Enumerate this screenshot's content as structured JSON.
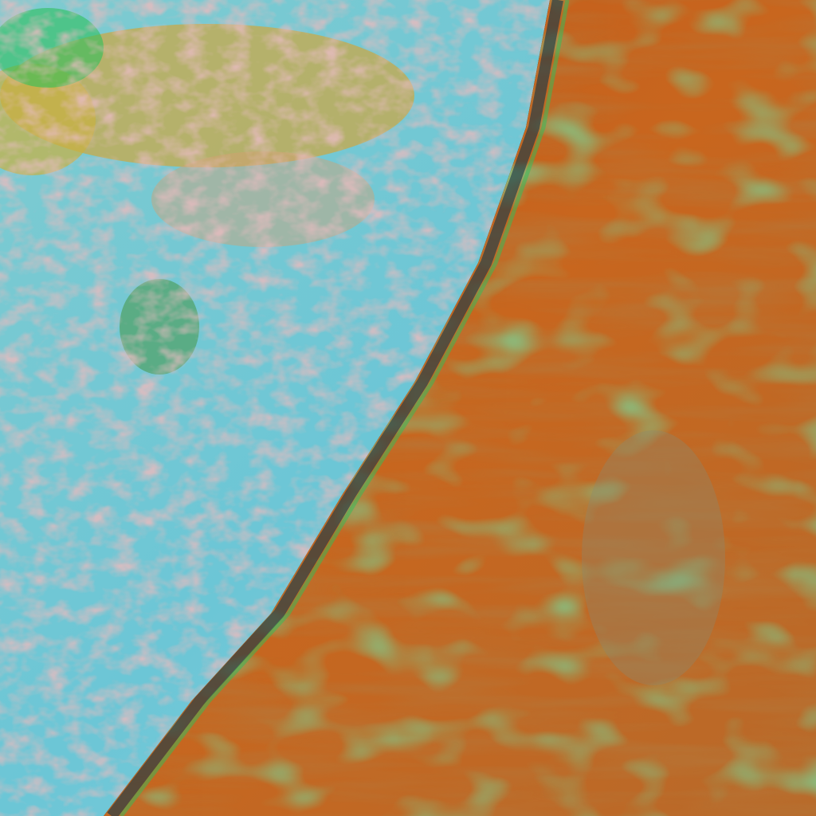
{
  "image": {
    "kind": "false-color satellite imagery",
    "colors": {
      "ocean_cloud": "#6cc6d6",
      "ocean_cloud_light": "#a9d8e0",
      "cloud_speckle": "#c98a8a",
      "land_cloud": "#c8661e",
      "land_cloud_dark": "#9a4a18",
      "vegetation_green": "#2fbf5a",
      "haze_yellow": "#c9b040",
      "front_edge": "#1d3a46"
    }
  }
}
